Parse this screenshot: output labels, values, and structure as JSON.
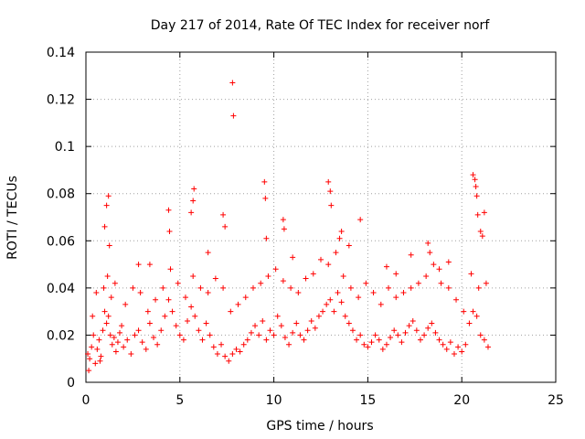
{
  "chart_data": {
    "type": "scatter",
    "title": "Day 217 of 2014, Rate Of TEC Index for receiver norf",
    "xlabel": "GPS time / hours",
    "ylabel": "ROTI / TECUs",
    "xlim": [
      0,
      25
    ],
    "ylim": [
      0,
      0.14
    ],
    "xticks": [
      0,
      5,
      10,
      15,
      20,
      25
    ],
    "yticks": [
      0,
      0.02,
      0.04,
      0.06,
      0.08,
      0.1,
      0.12,
      0.14
    ],
    "xtick_labels": [
      "0",
      "5",
      "10",
      "15",
      "20",
      "25"
    ],
    "ytick_labels": [
      "0",
      "0.02",
      "0.04",
      "0.06",
      "0.08",
      "0.1",
      "0.12",
      "0.14"
    ],
    "grid": true,
    "marker": "+",
    "color": "#ff0000",
    "series": [
      {
        "name": "ROTI",
        "x": [
          0.1,
          0.2,
          0.3,
          0.4,
          0.5,
          0.6,
          0.7,
          0.8,
          0.9,
          1.0,
          1.1,
          1.2,
          1.3,
          1.4,
          1.5,
          1.6,
          1.7,
          1.8,
          1.9,
          2.0,
          2.2,
          2.4,
          2.6,
          2.8,
          3.0,
          3.2,
          3.4,
          3.6,
          3.8,
          4.0,
          4.2,
          4.4,
          4.6,
          4.8,
          5.0,
          5.2,
          5.4,
          5.6,
          5.8,
          6.0,
          6.2,
          6.4,
          6.6,
          6.8,
          7.0,
          7.2,
          7.4,
          7.6,
          7.8,
          8.0,
          8.2,
          8.4,
          8.6,
          8.8,
          9.0,
          9.2,
          9.4,
          9.6,
          9.8,
          10.0,
          10.2,
          10.4,
          10.6,
          10.8,
          11.0,
          11.2,
          11.4,
          11.6,
          11.8,
          12.0,
          12.2,
          12.4,
          12.6,
          12.8,
          13.0,
          13.2,
          13.4,
          13.6,
          13.8,
          14.0,
          14.2,
          14.4,
          14.6,
          14.8,
          15.0,
          15.2,
          15.4,
          15.6,
          15.8,
          16.0,
          16.2,
          16.4,
          16.6,
          16.8,
          17.0,
          17.2,
          17.4,
          17.6,
          17.8,
          18.0,
          18.2,
          18.4,
          18.6,
          18.8,
          19.0,
          19.2,
          19.4,
          19.6,
          19.8,
          20.0,
          20.2,
          20.4,
          20.6,
          20.8,
          21.0,
          21.2,
          21.4,
          1.0,
          1.1,
          1.2,
          1.25,
          2.8,
          3.4,
          4.4,
          4.45,
          5.6,
          5.7,
          5.75,
          6.5,
          7.3,
          7.4,
          7.8,
          7.85,
          9.5,
          9.55,
          9.6,
          10.5,
          10.55,
          11.0,
          12.9,
          13.0,
          13.05,
          13.5,
          13.6,
          14.0,
          14.6,
          16.0,
          16.5,
          17.3,
          18.2,
          18.3,
          18.8,
          19.3,
          20.6,
          20.7,
          20.75,
          20.8,
          20.85,
          21.0,
          21.1,
          21.2,
          0.15,
          0.35,
          0.55,
          0.75,
          0.95,
          1.15,
          1.35,
          1.55,
          2.1,
          2.5,
          2.9,
          3.3,
          3.7,
          4.1,
          4.5,
          4.9,
          5.3,
          5.7,
          6.1,
          6.5,
          6.9,
          7.3,
          7.7,
          8.1,
          8.5,
          8.9,
          9.3,
          9.7,
          10.1,
          10.5,
          10.9,
          11.3,
          11.7,
          12.1,
          12.5,
          12.9,
          13.3,
          13.7,
          14.1,
          14.5,
          14.9,
          15.3,
          15.7,
          16.1,
          16.5,
          16.9,
          17.3,
          17.7,
          18.1,
          18.5,
          18.9,
          19.3,
          19.7,
          20.1,
          20.5,
          20.9,
          21.3
        ],
        "y": [
          0.012,
          0.01,
          0.015,
          0.02,
          0.008,
          0.014,
          0.018,
          0.011,
          0.022,
          0.03,
          0.025,
          0.028,
          0.02,
          0.016,
          0.019,
          0.013,
          0.017,
          0.021,
          0.024,
          0.015,
          0.018,
          0.012,
          0.02,
          0.022,
          0.017,
          0.014,
          0.025,
          0.019,
          0.016,
          0.022,
          0.028,
          0.035,
          0.03,
          0.024,
          0.02,
          0.018,
          0.026,
          0.032,
          0.028,
          0.022,
          0.018,
          0.025,
          0.02,
          0.015,
          0.012,
          0.016,
          0.011,
          0.009,
          0.012,
          0.014,
          0.013,
          0.016,
          0.018,
          0.021,
          0.024,
          0.02,
          0.026,
          0.018,
          0.022,
          0.02,
          0.028,
          0.024,
          0.019,
          0.016,
          0.021,
          0.025,
          0.02,
          0.018,
          0.022,
          0.026,
          0.023,
          0.028,
          0.03,
          0.033,
          0.035,
          0.03,
          0.038,
          0.034,
          0.028,
          0.025,
          0.022,
          0.018,
          0.02,
          0.016,
          0.015,
          0.017,
          0.02,
          0.018,
          0.014,
          0.016,
          0.019,
          0.022,
          0.02,
          0.017,
          0.021,
          0.024,
          0.026,
          0.022,
          0.018,
          0.02,
          0.023,
          0.025,
          0.021,
          0.018,
          0.016,
          0.014,
          0.017,
          0.012,
          0.015,
          0.013,
          0.016,
          0.025,
          0.03,
          0.028,
          0.02,
          0.018,
          0.015,
          0.066,
          0.075,
          0.079,
          0.058,
          0.05,
          0.05,
          0.073,
          0.064,
          0.072,
          0.077,
          0.082,
          0.055,
          0.071,
          0.066,
          0.127,
          0.113,
          0.085,
          0.078,
          0.061,
          0.069,
          0.065,
          0.053,
          0.085,
          0.081,
          0.075,
          0.061,
          0.064,
          0.058,
          0.069,
          0.049,
          0.046,
          0.054,
          0.059,
          0.055,
          0.048,
          0.051,
          0.088,
          0.086,
          0.083,
          0.079,
          0.071,
          0.064,
          0.062,
          0.072,
          0.005,
          0.028,
          0.038,
          0.009,
          0.04,
          0.045,
          0.036,
          0.042,
          0.033,
          0.04,
          0.038,
          0.03,
          0.035,
          0.04,
          0.048,
          0.042,
          0.036,
          0.045,
          0.04,
          0.038,
          0.044,
          0.04,
          0.03,
          0.033,
          0.036,
          0.04,
          0.042,
          0.045,
          0.048,
          0.043,
          0.04,
          0.038,
          0.044,
          0.046,
          0.052,
          0.05,
          0.055,
          0.045,
          0.04,
          0.036,
          0.042,
          0.038,
          0.033,
          0.04,
          0.036,
          0.038,
          0.04,
          0.042,
          0.045,
          0.05,
          0.042,
          0.04,
          0.035,
          0.03,
          0.046,
          0.04,
          0.042
        ]
      }
    ]
  }
}
